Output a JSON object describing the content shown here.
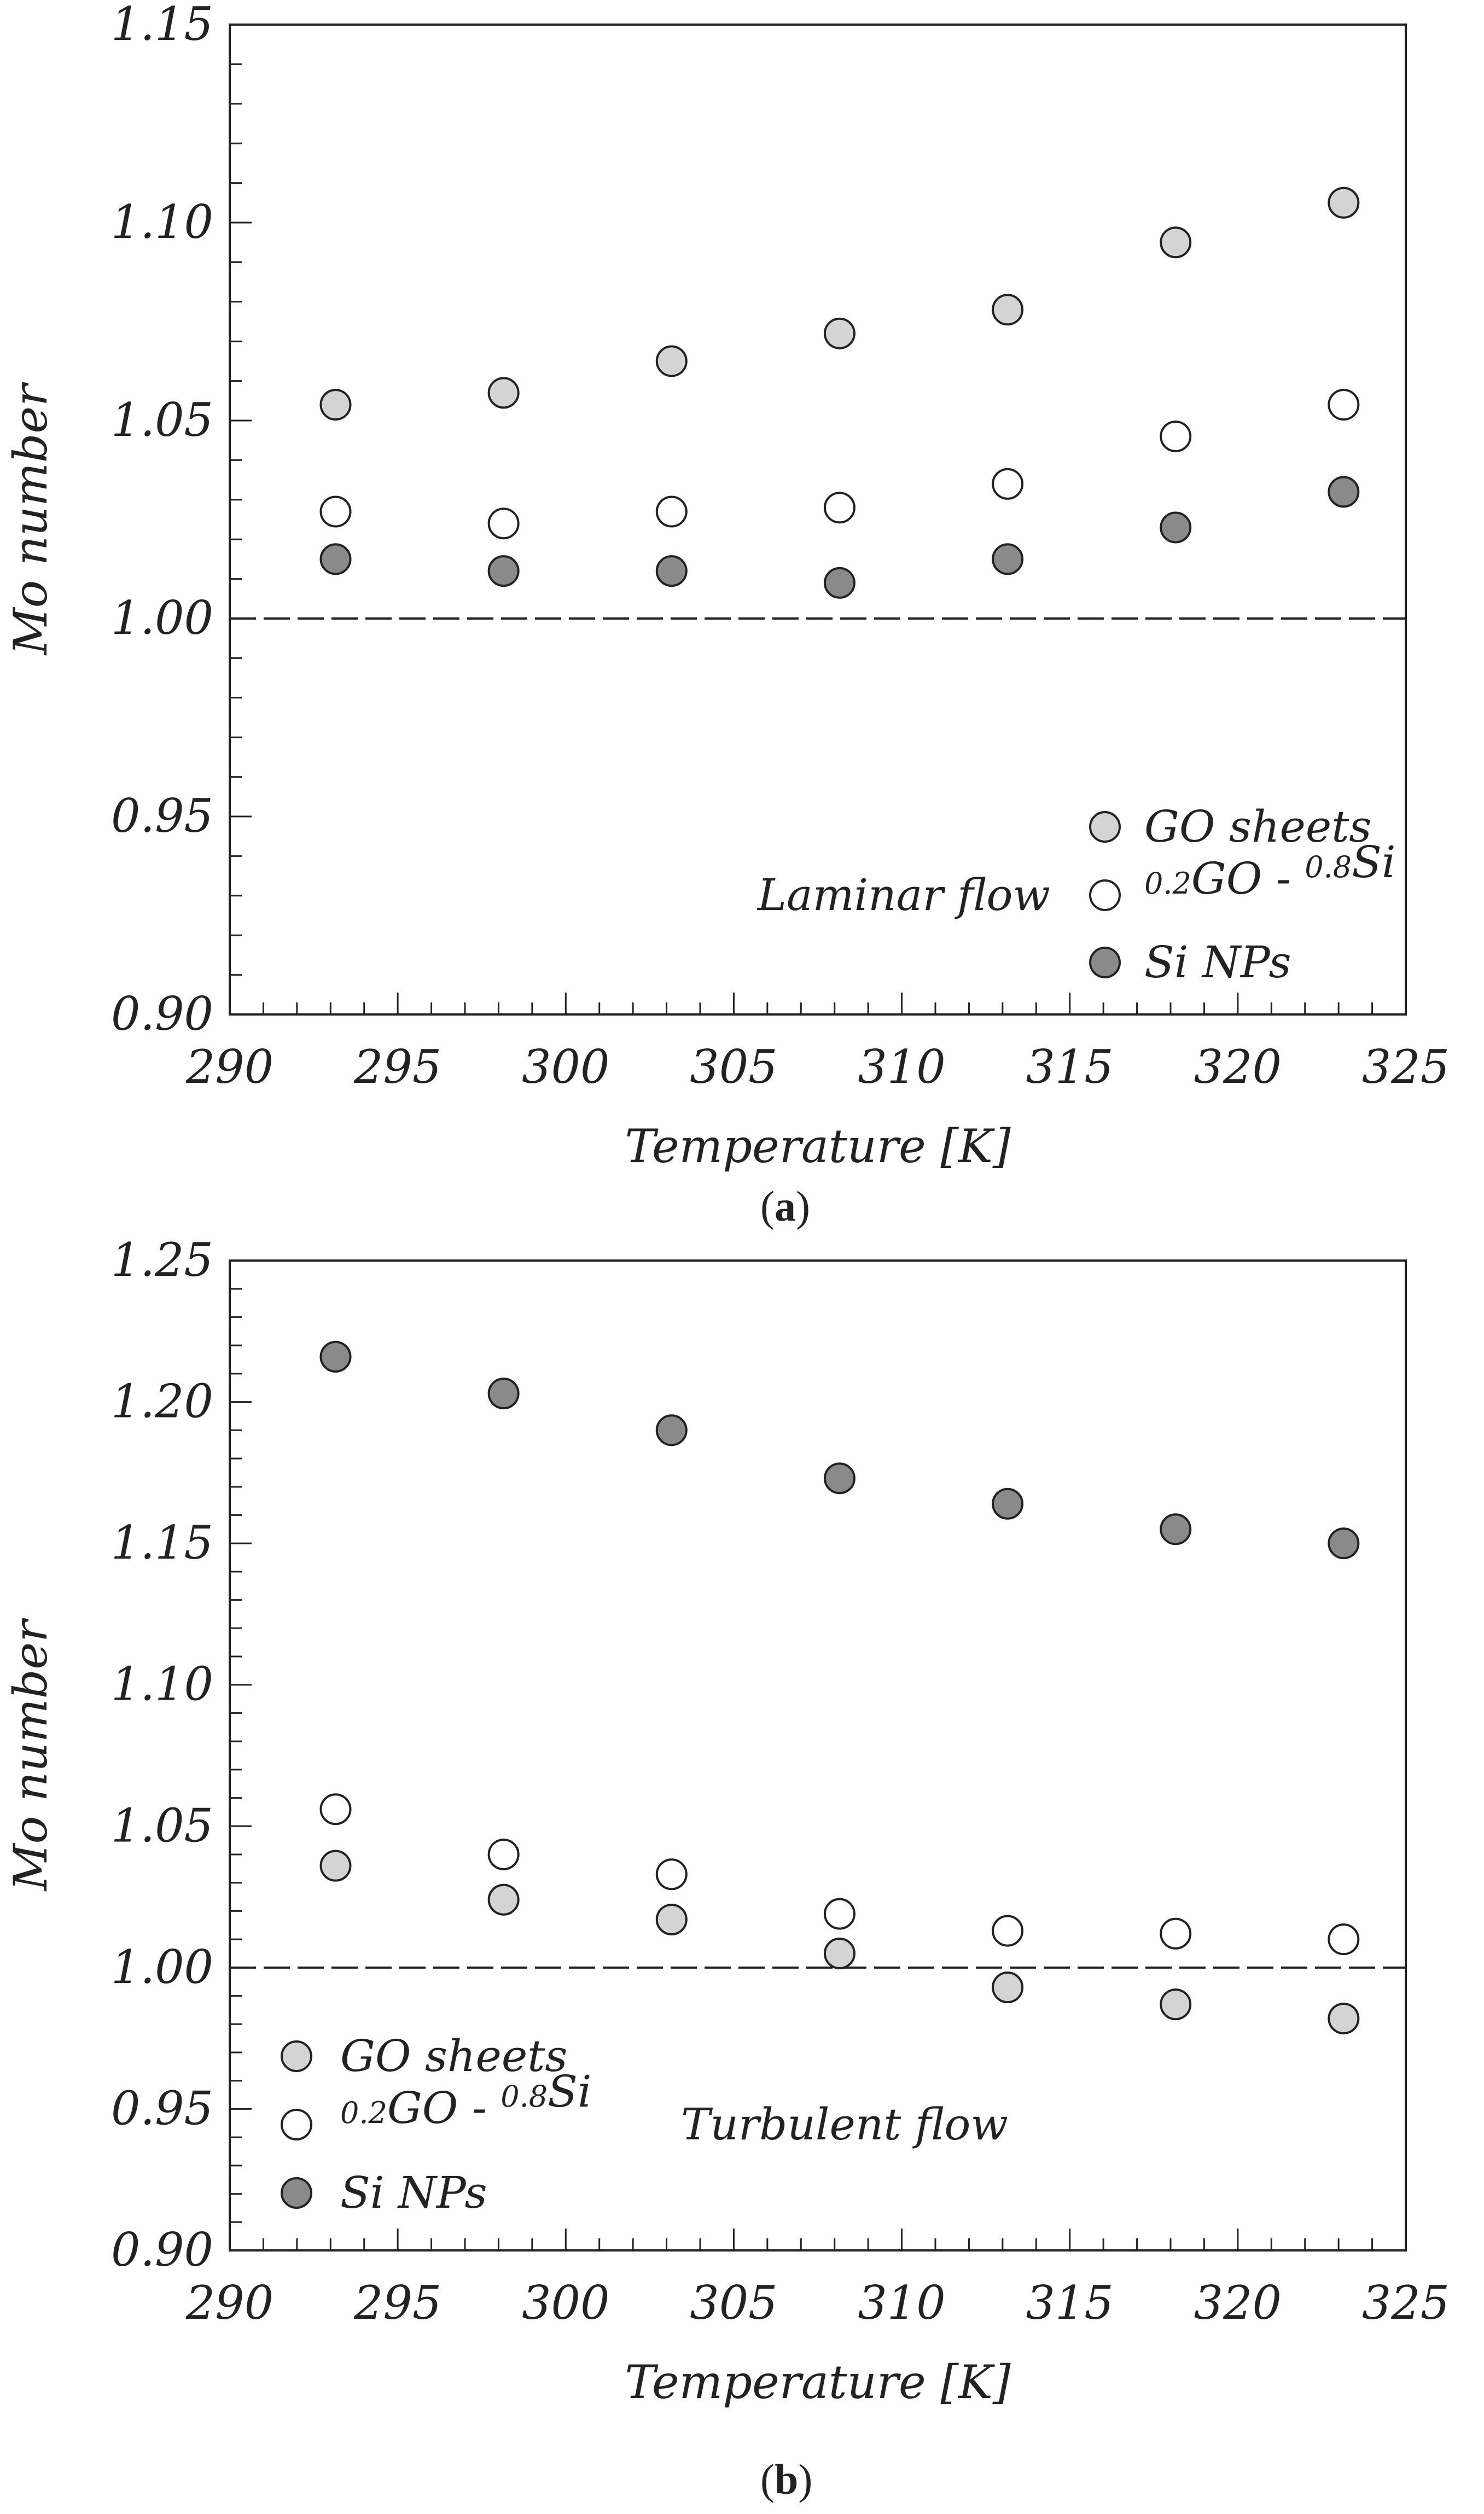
{
  "chart_data": [
    {
      "type": "scatter",
      "panel_label": "a",
      "xlabel": "Temperature [K]",
      "ylabel": "Mo number",
      "xlim": [
        290,
        325
      ],
      "ylim": [
        0.9,
        1.15
      ],
      "xticks": [
        "290",
        "295",
        "300",
        "305",
        "310",
        "315",
        "320",
        "325"
      ],
      "yticks": [
        "0.90",
        "0.95",
        "1.00",
        "1.05",
        "1.10",
        "1.15"
      ],
      "reference_line": 1.0,
      "annotation": "Laminar flow",
      "legend_position": "bottom-right",
      "x": [
        293.15,
        298.15,
        303.15,
        308.15,
        313.15,
        318.15,
        323.15
      ],
      "series": [
        {
          "name": "GO sheets",
          "name_parts": {
            "sup1": "",
            "base1": "GO sheets",
            "sup2": "",
            "base2": ""
          },
          "fill": "#d4d4d4",
          "values": [
            1.054,
            1.057,
            1.065,
            1.072,
            1.078,
            1.095,
            1.105
          ]
        },
        {
          "name": "0.2GO - 0.8Si",
          "name_parts": {
            "sup1": "0.2",
            "base1": "GO - ",
            "sup2": "0.8",
            "base2": "Si"
          },
          "fill": "#ffffff",
          "values": [
            1.027,
            1.024,
            1.027,
            1.028,
            1.034,
            1.046,
            1.054
          ]
        },
        {
          "name": "Si NPs",
          "name_parts": {
            "sup1": "",
            "base1": "Si NPs",
            "sup2": "",
            "base2": ""
          },
          "fill": "#8a8a8a",
          "values": [
            1.015,
            1.012,
            1.012,
            1.009,
            1.015,
            1.023,
            1.032
          ]
        }
      ]
    },
    {
      "type": "scatter",
      "panel_label": "b",
      "xlabel": "Temperature [K]",
      "ylabel": "Mo number",
      "xlim": [
        290,
        325
      ],
      "ylim": [
        0.9,
        1.25
      ],
      "xticks": [
        "290",
        "295",
        "300",
        "305",
        "310",
        "315",
        "320",
        "325"
      ],
      "yticks": [
        "0.90",
        "0.95",
        "1.00",
        "1.05",
        "1.10",
        "1.15",
        "1.20",
        "1.25"
      ],
      "reference_line": 1.0,
      "annotation": "Turbulent flow",
      "legend_position": "bottom-left",
      "x": [
        293.15,
        298.15,
        303.15,
        308.15,
        313.15,
        318.15,
        323.15
      ],
      "series": [
        {
          "name": "GO sheets",
          "name_parts": {
            "sup1": "",
            "base1": "GO sheets",
            "sup2": "",
            "base2": ""
          },
          "fill": "#d4d4d4",
          "values": [
            1.036,
            1.024,
            1.017,
            1.005,
            0.993,
            0.987,
            0.982
          ]
        },
        {
          "name": "0.2GO - 0.8Si",
          "name_parts": {
            "sup1": "0.2",
            "base1": "GO - ",
            "sup2": "0.8",
            "base2": "Si"
          },
          "fill": "#ffffff",
          "values": [
            1.056,
            1.04,
            1.033,
            1.019,
            1.013,
            1.012,
            1.01
          ]
        },
        {
          "name": "Si NPs",
          "name_parts": {
            "sup1": "",
            "base1": "Si NPs",
            "sup2": "",
            "base2": ""
          },
          "fill": "#8a8a8a",
          "values": [
            1.216,
            1.203,
            1.19,
            1.173,
            1.164,
            1.155,
            1.15
          ]
        }
      ]
    }
  ]
}
